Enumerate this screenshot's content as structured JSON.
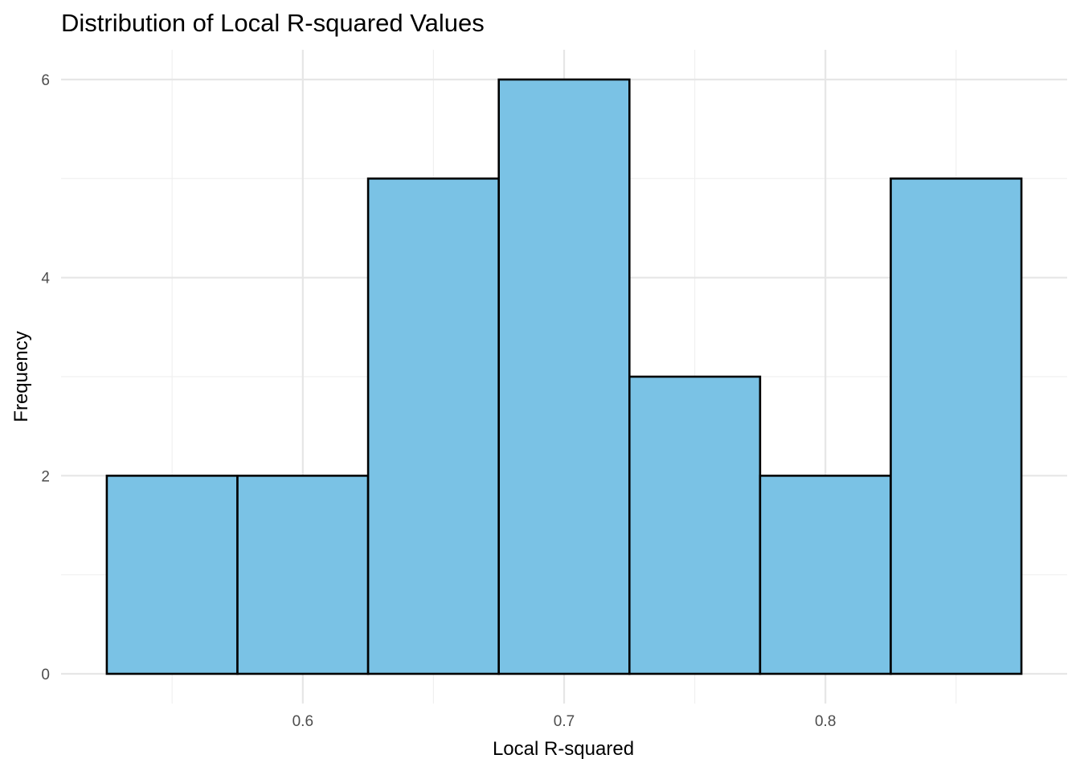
{
  "chart_data": {
    "type": "bar",
    "title": "Distribution of Local R-squared Values",
    "xlabel": "Local R-squared",
    "ylabel": "Frequency",
    "bins": [
      {
        "start": 0.525,
        "end": 0.575,
        "count": 2
      },
      {
        "start": 0.575,
        "end": 0.625,
        "count": 2
      },
      {
        "start": 0.625,
        "end": 0.675,
        "count": 5
      },
      {
        "start": 0.675,
        "end": 0.725,
        "count": 6
      },
      {
        "start": 0.725,
        "end": 0.775,
        "count": 3
      },
      {
        "start": 0.775,
        "end": 0.825,
        "count": 2
      },
      {
        "start": 0.825,
        "end": 0.875,
        "count": 5
      }
    ],
    "x_ticks": [
      {
        "value": 0.6,
        "label": "0.6"
      },
      {
        "value": 0.7,
        "label": "0.7"
      },
      {
        "value": 0.8,
        "label": "0.8"
      }
    ],
    "y_ticks": [
      {
        "value": 0,
        "label": "0"
      },
      {
        "value": 2,
        "label": "2"
      },
      {
        "value": 4,
        "label": "4"
      },
      {
        "value": 6,
        "label": "6"
      }
    ],
    "xlim": [
      0.5075,
      0.8925
    ],
    "ylim": [
      -0.3,
      6.3
    ],
    "grid": true,
    "bar_fill": "#7ac2e5",
    "bar_outline": "#000000"
  }
}
